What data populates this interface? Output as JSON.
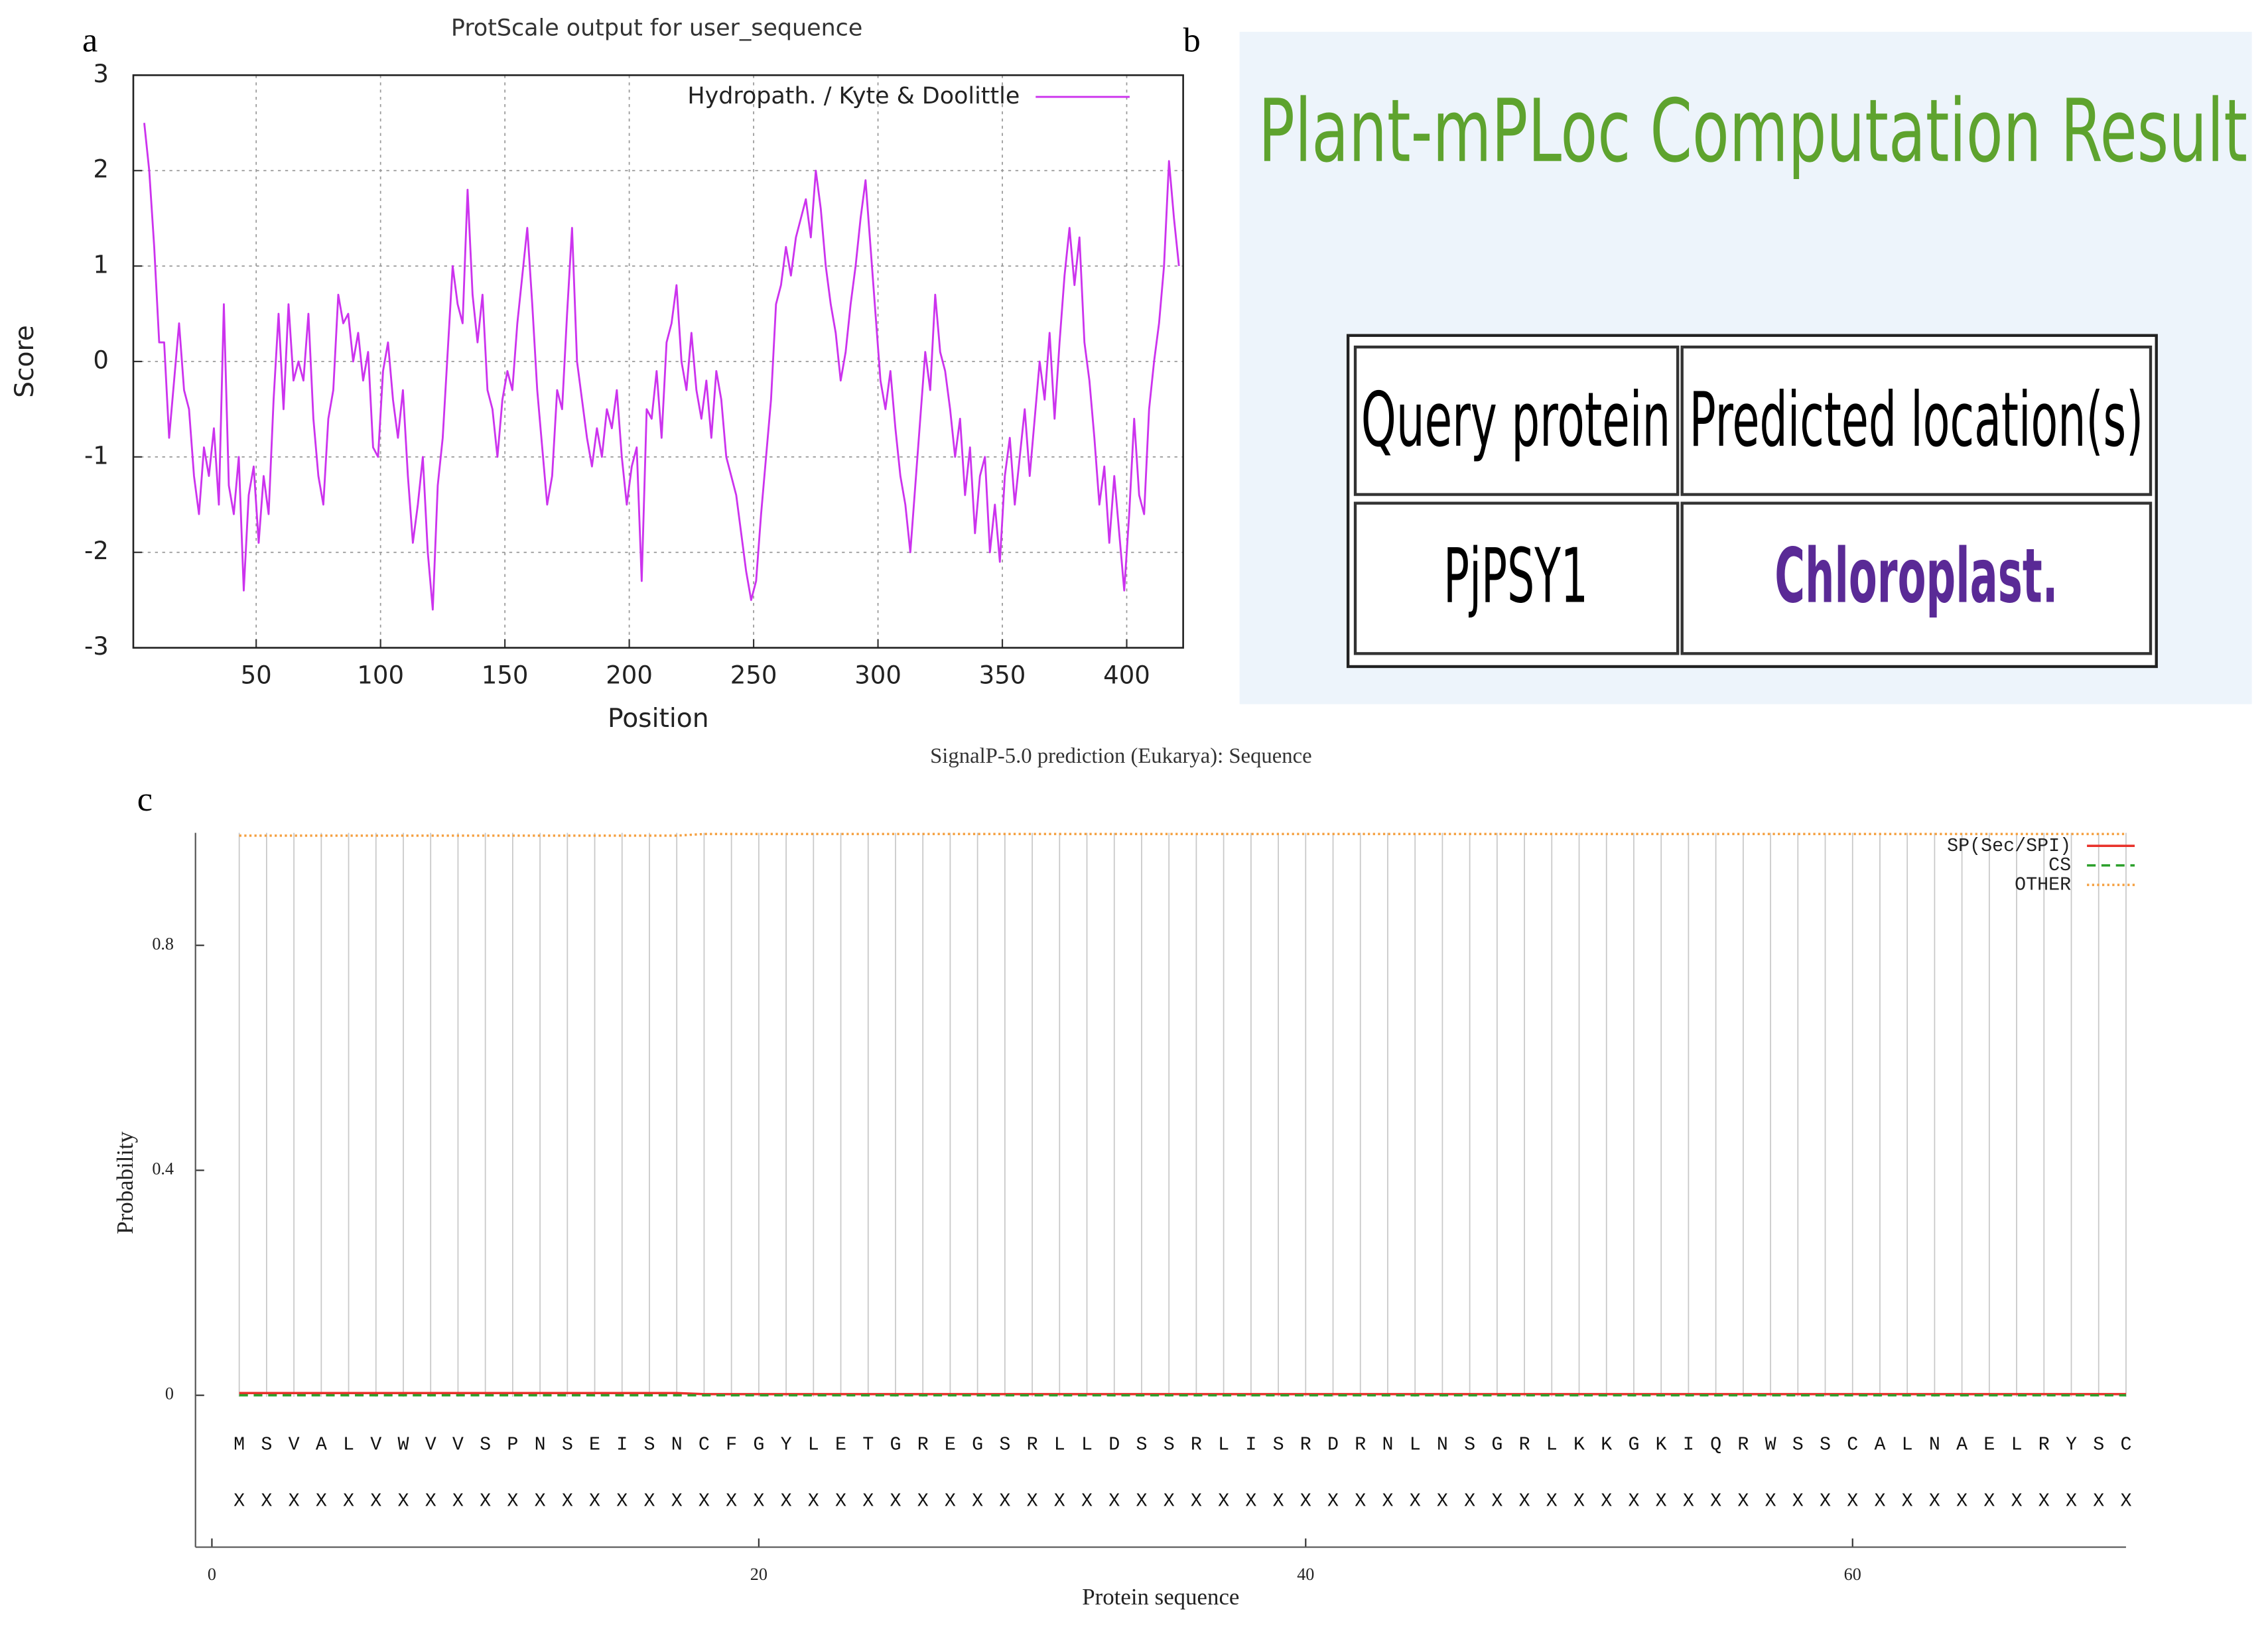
{
  "panel_labels": [
    "a",
    "b",
    "c"
  ],
  "chart_data": [
    {
      "type": "line",
      "title": "ProtScale output for user_sequence",
      "x_label": "Position",
      "y_label": "Score",
      "xlim": [
        0.6,
        422.7
      ],
      "ylim": [
        -3,
        3
      ],
      "xticks": [
        50,
        100,
        150,
        200,
        250,
        300,
        350,
        400
      ],
      "yticks": [
        -3,
        -2,
        -1,
        0,
        1,
        2,
        3
      ],
      "grid": true,
      "legend": "upper right",
      "x": [
        5,
        7,
        9,
        11,
        13,
        15,
        17,
        19,
        21,
        23,
        25,
        27,
        29,
        31,
        33,
        35,
        37,
        39,
        41,
        43,
        45,
        47,
        49,
        51,
        53,
        55,
        57,
        59,
        61,
        63,
        65,
        67,
        69,
        71,
        73,
        75,
        77,
        79,
        81,
        83,
        85,
        87,
        89,
        91,
        93,
        95,
        97,
        99,
        101,
        103,
        105,
        107,
        109,
        111,
        113,
        115,
        117,
        119,
        121,
        123,
        125,
        127,
        129,
        131,
        133,
        135,
        137,
        139,
        141,
        143,
        145,
        147,
        149,
        151,
        153,
        155,
        157,
        159,
        161,
        163,
        165,
        167,
        169,
        171,
        173,
        175,
        177,
        179,
        181,
        183,
        185,
        187,
        189,
        191,
        193,
        195,
        197,
        199,
        201,
        203,
        205,
        207,
        209,
        211,
        213,
        215,
        217,
        219,
        221,
        223,
        225,
        227,
        229,
        231,
        233,
        235,
        237,
        239,
        241,
        243,
        245,
        247,
        249,
        251,
        253,
        255,
        257,
        259,
        261,
        263,
        265,
        267,
        269,
        271,
        273,
        275,
        277,
        279,
        281,
        283,
        285,
        287,
        289,
        291,
        293,
        295,
        297,
        299,
        301,
        303,
        305,
        307,
        309,
        311,
        313,
        315,
        317,
        319,
        321,
        323,
        325,
        327,
        329,
        331,
        333,
        335,
        337,
        339,
        341,
        343,
        345,
        347,
        349,
        351,
        353,
        355,
        357,
        359,
        361,
        363,
        365,
        367,
        369,
        371,
        373,
        375,
        377,
        379,
        381,
        383,
        385,
        387,
        389,
        391,
        393,
        395,
        397,
        399,
        401,
        403,
        405,
        407,
        409,
        411,
        413,
        415,
        417,
        419,
        421
      ],
      "series": [
        {
          "name": "Hydropath. / Kyte & Doolittle",
          "color": "#cc33ee",
          "values": [
            2.5,
            2.0,
            1.2,
            0.2,
            0.2,
            -0.8,
            -0.2,
            0.4,
            -0.3,
            -0.5,
            -1.2,
            -1.6,
            -0.9,
            -1.2,
            -0.7,
            -1.5,
            0.6,
            -1.3,
            -1.6,
            -1.0,
            -2.4,
            -1.4,
            -1.1,
            -1.9,
            -1.2,
            -1.6,
            -0.4,
            0.5,
            -0.5,
            0.6,
            -0.2,
            0.0,
            -0.2,
            0.5,
            -0.6,
            -1.2,
            -1.5,
            -0.6,
            -0.3,
            0.7,
            0.4,
            0.5,
            0.0,
            0.3,
            -0.2,
            0.1,
            -0.9,
            -1.0,
            -0.1,
            0.2,
            -0.4,
            -0.8,
            -0.3,
            -1.2,
            -1.9,
            -1.5,
            -1.0,
            -2.0,
            -2.6,
            -1.3,
            -0.8,
            0.1,
            1.0,
            0.6,
            0.4,
            1.8,
            0.7,
            0.2,
            0.7,
            -0.3,
            -0.5,
            -1.0,
            -0.4,
            -0.1,
            -0.3,
            0.4,
            0.9,
            1.4,
            0.6,
            -0.3,
            -0.9,
            -1.5,
            -1.2,
            -0.3,
            -0.5,
            0.5,
            1.4,
            0.0,
            -0.4,
            -0.8,
            -1.1,
            -0.7,
            -1.0,
            -0.5,
            -0.7,
            -0.3,
            -1.0,
            -1.5,
            -1.1,
            -0.9,
            -2.3,
            -0.5,
            -0.6,
            -0.1,
            -0.8,
            0.2,
            0.4,
            0.8,
            0.0,
            -0.3,
            0.3,
            -0.3,
            -0.6,
            -0.2,
            -0.8,
            -0.1,
            -0.4,
            -1.0,
            -1.2,
            -1.4,
            -1.8,
            -2.2,
            -2.5,
            -2.3,
            -1.6,
            -1.0,
            -0.4,
            0.6,
            0.8,
            1.2,
            0.9,
            1.3,
            1.5,
            1.7,
            1.3,
            2.0,
            1.6,
            1.0,
            0.6,
            0.3,
            -0.2,
            0.1,
            0.6,
            1.0,
            1.5,
            1.9,
            1.2,
            0.5,
            -0.2,
            -0.5,
            -0.1,
            -0.7,
            -1.2,
            -1.5,
            -2.0,
            -1.3,
            -0.6,
            0.1,
            -0.3,
            0.7,
            0.1,
            -0.1,
            -0.5,
            -1.0,
            -0.6,
            -1.4,
            -0.9,
            -1.8,
            -1.2,
            -1.0,
            -2.0,
            -1.5,
            -2.1,
            -1.2,
            -0.8,
            -1.5,
            -1.0,
            -0.5,
            -1.2,
            -0.6,
            0.0,
            -0.4,
            0.3,
            -0.6,
            0.2,
            0.9,
            1.4,
            0.8,
            1.3,
            0.2,
            -0.2,
            -0.8,
            -1.5,
            -1.1,
            -1.9,
            -1.2,
            -1.8,
            -2.4,
            -1.6,
            -0.6,
            -1.4,
            -1.6,
            -0.5,
            0.0,
            0.4,
            1.0,
            2.1,
            1.5,
            1.0
          ]
        }
      ]
    },
    {
      "type": "line",
      "title": "SignalP-5.0 prediction (Eukarya):  Sequence",
      "x_label": "Protein sequence",
      "y_label": "Probability",
      "xlim": [
        -0.6,
        70
      ],
      "ylim": [
        -0.27,
        1
      ],
      "xticks": [
        0,
        20,
        40,
        60
      ],
      "yticks": [
        0,
        0.4,
        0.8
      ],
      "grid": true,
      "legend": "upper right",
      "x": [
        1,
        2,
        3,
        4,
        5,
        6,
        7,
        8,
        9,
        10,
        11,
        12,
        13,
        14,
        15,
        16,
        17,
        18,
        19,
        20,
        21,
        22,
        23,
        24,
        25,
        26,
        27,
        28,
        29,
        30,
        31,
        32,
        33,
        34,
        35,
        36,
        37,
        38,
        39,
        40,
        41,
        42,
        43,
        44,
        45,
        46,
        47,
        48,
        49,
        50,
        51,
        52,
        53,
        54,
        55,
        56,
        57,
        58,
        59,
        60,
        61,
        62,
        63,
        64,
        65,
        66,
        67,
        68,
        69,
        70
      ],
      "sequence": [
        "M",
        "S",
        "V",
        "A",
        "L",
        "V",
        "W",
        "V",
        "V",
        "S",
        "P",
        "N",
        "S",
        "E",
        "I",
        "S",
        "N",
        "C",
        "F",
        "G",
        "Y",
        "L",
        "E",
        "T",
        "G",
        "R",
        "E",
        "G",
        "S",
        "R",
        "L",
        "L",
        "D",
        "S",
        "S",
        "R",
        "L",
        "I",
        "S",
        "R",
        "D",
        "R",
        "N",
        "L",
        "N",
        "S",
        "G",
        "R",
        "L",
        "K",
        "K",
        "G",
        "K",
        "I",
        "Q",
        "R",
        "W",
        "S",
        "S",
        "C",
        "A",
        "L",
        "N",
        "A",
        "E",
        "L",
        "R",
        "Y",
        "S",
        "C"
      ],
      "markers": [
        "X",
        "X",
        "X",
        "X",
        "X",
        "X",
        "X",
        "X",
        "X",
        "X",
        "X",
        "X",
        "X",
        "X",
        "X",
        "X",
        "X",
        "X",
        "X",
        "X",
        "X",
        "X",
        "X",
        "X",
        "X",
        "X",
        "X",
        "X",
        "X",
        "X",
        "X",
        "X",
        "X",
        "X",
        "X",
        "X",
        "X",
        "X",
        "X",
        "X",
        "X",
        "X",
        "X",
        "X",
        "X",
        "X",
        "X",
        "X",
        "X",
        "X",
        "X",
        "X",
        "X",
        "X",
        "X",
        "X",
        "X",
        "X",
        "X",
        "X",
        "X",
        "X",
        "X",
        "X",
        "X",
        "X",
        "X",
        "X",
        "X",
        "X"
      ],
      "series": [
        {
          "name": "SP(Sec/SPI)",
          "color": "#e8312a",
          "style": "solid",
          "values": [
            0.004,
            0.004,
            0.004,
            0.004,
            0.004,
            0.004,
            0.004,
            0.004,
            0.004,
            0.004,
            0.004,
            0.004,
            0.004,
            0.004,
            0.004,
            0.004,
            0.004,
            0.002,
            0.002,
            0.002,
            0.002,
            0.002,
            0.002,
            0.002,
            0.002,
            0.002,
            0.002,
            0.002,
            0.002,
            0.002,
            0.002,
            0.002,
            0.002,
            0.002,
            0.002,
            0.002,
            0.002,
            0.002,
            0.002,
            0.002,
            0.002,
            0.002,
            0.002,
            0.002,
            0.002,
            0.002,
            0.002,
            0.002,
            0.002,
            0.002,
            0.002,
            0.002,
            0.002,
            0.002,
            0.002,
            0.002,
            0.002,
            0.002,
            0.002,
            0.002,
            0.002,
            0.002,
            0.002,
            0.002,
            0.002,
            0.002,
            0.002,
            0.002,
            0.002,
            0.002
          ]
        },
        {
          "name": "CS",
          "color": "#2ca02c",
          "style": "dashed",
          "values": [
            0,
            0,
            0,
            0,
            0,
            0,
            0,
            0,
            0,
            0,
            0,
            0,
            0,
            0,
            0,
            0,
            0,
            0,
            0,
            0,
            0,
            0,
            0,
            0,
            0,
            0,
            0,
            0,
            0,
            0,
            0,
            0,
            0,
            0,
            0,
            0,
            0,
            0,
            0,
            0,
            0,
            0,
            0,
            0,
            0,
            0,
            0,
            0,
            0,
            0,
            0,
            0,
            0,
            0,
            0,
            0,
            0,
            0,
            0,
            0,
            0,
            0,
            0,
            0,
            0,
            0,
            0,
            0,
            0,
            0
          ]
        },
        {
          "name": "OTHER",
          "color": "#f5a040",
          "style": "dotted",
          "values": [
            0.995,
            0.995,
            0.995,
            0.995,
            0.995,
            0.995,
            0.995,
            0.995,
            0.995,
            0.995,
            0.995,
            0.995,
            0.995,
            0.995,
            0.995,
            0.995,
            0.995,
            0.998,
            0.998,
            0.998,
            0.998,
            0.998,
            0.998,
            0.998,
            0.998,
            0.998,
            0.998,
            0.998,
            0.998,
            0.998,
            0.998,
            0.998,
            0.998,
            0.998,
            0.998,
            0.998,
            0.998,
            0.998,
            0.998,
            0.998,
            0.998,
            0.998,
            0.998,
            0.998,
            0.998,
            0.998,
            0.998,
            0.998,
            0.998,
            0.998,
            0.998,
            0.998,
            0.998,
            0.998,
            0.998,
            0.998,
            0.998,
            0.998,
            0.998,
            0.998,
            0.998,
            0.998,
            0.998,
            0.998,
            0.998,
            0.998,
            0.998,
            0.998,
            0.998,
            0.998
          ]
        }
      ]
    }
  ],
  "table": {
    "title": "Plant-mPLoc Computation Result",
    "header": [
      "Query protein",
      "Predicted location(s)"
    ],
    "rows": [
      [
        "PjPSY1",
        "Chloroplast."
      ]
    ]
  }
}
